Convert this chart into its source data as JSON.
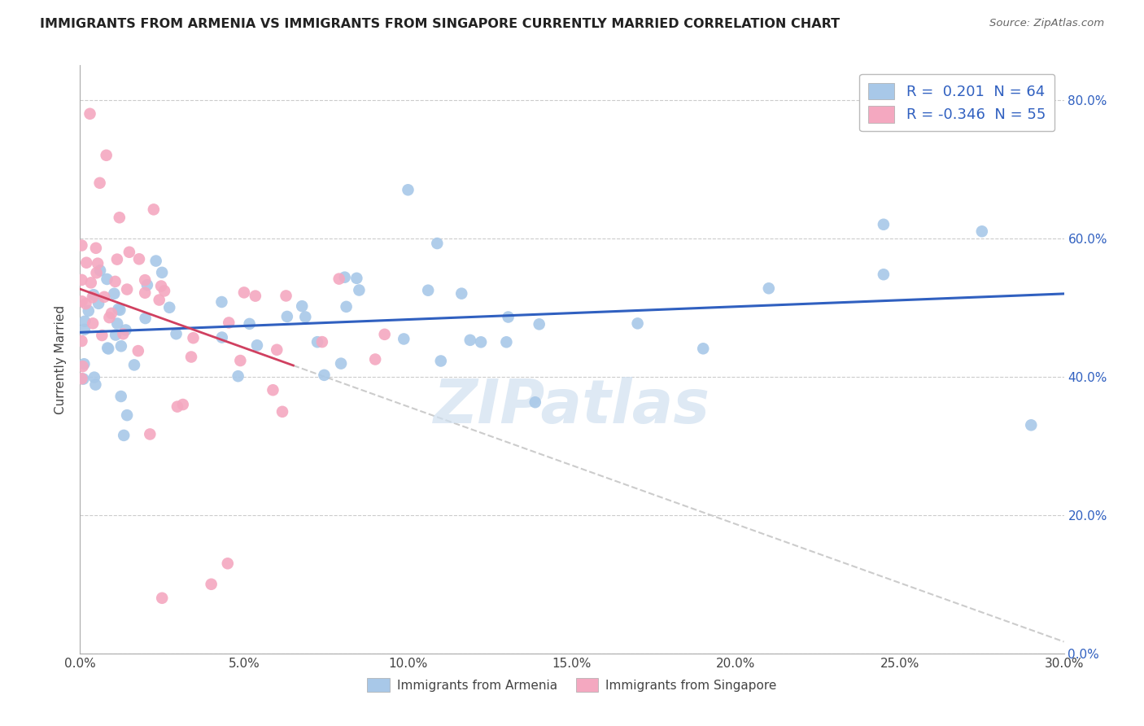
{
  "title": "IMMIGRANTS FROM ARMENIA VS IMMIGRANTS FROM SINGAPORE CURRENTLY MARRIED CORRELATION CHART",
  "source": "Source: ZipAtlas.com",
  "ylabel": "Currently Married",
  "xlim": [
    0.0,
    0.3
  ],
  "ylim": [
    0.0,
    0.85
  ],
  "yticks": [
    0.0,
    0.2,
    0.4,
    0.6,
    0.8
  ],
  "xticks": [
    0.0,
    0.05,
    0.1,
    0.15,
    0.2,
    0.25,
    0.3
  ],
  "legend_r_armenia": " 0.201",
  "legend_n_armenia": "64",
  "legend_r_singapore": "-0.346",
  "legend_n_singapore": "55",
  "armenia_color": "#a8c8e8",
  "singapore_color": "#f4a8c0",
  "trend_armenia_color": "#3060c0",
  "trend_singapore_color": "#d04060",
  "background_color": "#ffffff",
  "grid_color": "#cccccc",
  "watermark": "ZIPatlas",
  "r_value_color": "#3060c0",
  "n_value_color": "#3060c0"
}
